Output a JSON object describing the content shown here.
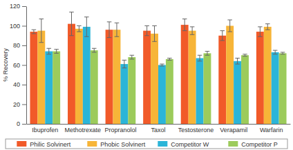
{
  "chart_data": {
    "type": "bar",
    "y_label": "% Recovery",
    "categories": [
      "Ibuprofen",
      "Methotrexate",
      "Propranolol",
      "Taxol",
      "Testosterone",
      "Verapamil",
      "Warfarin"
    ],
    "series": [
      {
        "name": "Philic Solvinert",
        "color": "#f15a29",
        "values": [
          94,
          102,
          96,
          95,
          101,
          90,
          94
        ],
        "errors": [
          2,
          12,
          8,
          5,
          6,
          5,
          5
        ]
      },
      {
        "name": "Phobic Solvinert",
        "color": "#f7b538",
        "values": [
          95,
          97,
          96,
          92,
          95,
          100,
          99
        ],
        "errors": [
          12,
          3,
          7,
          8,
          4,
          6,
          3
        ]
      },
      {
        "name": "Competitor W",
        "color": "#2bb5d8",
        "values": [
          74,
          99,
          61,
          60,
          67,
          64,
          73
        ],
        "errors": [
          3,
          10,
          4,
          1,
          3,
          3,
          2
        ]
      },
      {
        "name": "Competitor P",
        "color": "#9ccb5b",
        "values": [
          74,
          75,
          68,
          66,
          72,
          70,
          72
        ],
        "errors": [
          2,
          2,
          2,
          1,
          2,
          1,
          1
        ]
      }
    ],
    "ylim": [
      0,
      120
    ],
    "yticks": [
      0,
      20,
      40,
      60,
      80,
      100,
      120
    ],
    "grid": false,
    "legend": "bottom"
  }
}
